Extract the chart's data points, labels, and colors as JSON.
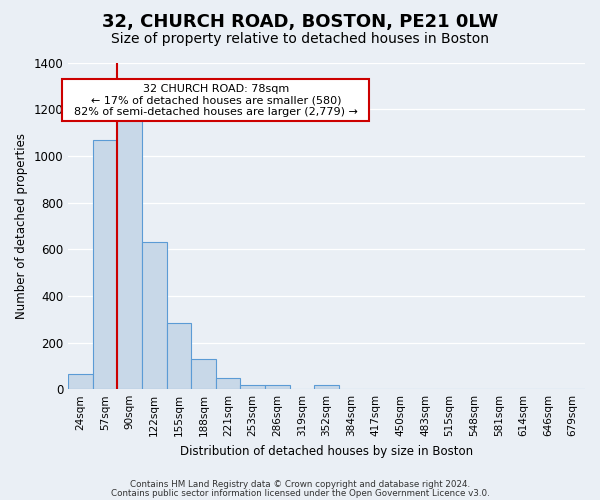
{
  "title": "32, CHURCH ROAD, BOSTON, PE21 0LW",
  "subtitle": "Size of property relative to detached houses in Boston",
  "xlabel": "Distribution of detached houses by size in Boston",
  "ylabel": "Number of detached properties",
  "footer_lines": [
    "Contains HM Land Registry data © Crown copyright and database right 2024.",
    "Contains public sector information licensed under the Open Government Licence v3.0."
  ],
  "bin_labels": [
    "24sqm",
    "57sqm",
    "90sqm",
    "122sqm",
    "155sqm",
    "188sqm",
    "221sqm",
    "253sqm",
    "286sqm",
    "319sqm",
    "352sqm",
    "384sqm",
    "417sqm",
    "450sqm",
    "483sqm",
    "515sqm",
    "548sqm",
    "581sqm",
    "614sqm",
    "646sqm",
    "679sqm"
  ],
  "bar_values": [
    65,
    1070,
    1155,
    630,
    285,
    130,
    47,
    20,
    20,
    0,
    20,
    0,
    0,
    0,
    0,
    0,
    0,
    0,
    0,
    0,
    0
  ],
  "bar_color": "#c8d8e8",
  "bar_edge_color": "#5b9bd5",
  "vline_color": "#cc0000",
  "annotation_box": {
    "title": "32 CHURCH ROAD: 78sqm",
    "line1": "← 17% of detached houses are smaller (580)",
    "line2": "82% of semi-detached houses are larger (2,779) →"
  },
  "annotation_box_edge_color": "#cc0000",
  "ylim": [
    0,
    1400
  ],
  "yticks": [
    0,
    200,
    400,
    600,
    800,
    1000,
    1200,
    1400
  ],
  "background_color": "#eaeff5",
  "plot_background_color": "#eaeff5",
  "grid_color": "#ffffff",
  "title_fontsize": 13,
  "subtitle_fontsize": 10
}
